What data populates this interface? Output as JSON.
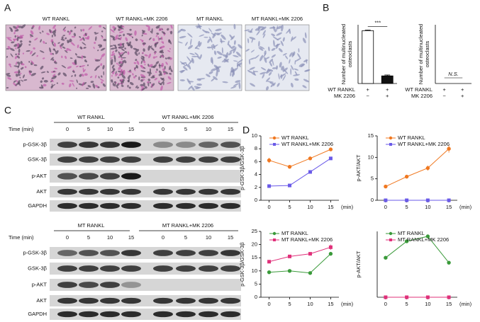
{
  "figure": {
    "panel_labels": [
      "A",
      "B",
      "C",
      "D"
    ],
    "micrographs": [
      "WT RANKL",
      "WT RANKL+MK 2206",
      "MT RANKL",
      "MT RANKL+MK 2206"
    ],
    "blots": [
      {
        "headers": [
          "WT RANKL",
          "WT RANKL+MK 2206"
        ],
        "time_label": "Time (min)",
        "times": [
          "0",
          "5",
          "10",
          "15",
          "0",
          "5",
          "10",
          "15"
        ],
        "rows": [
          "p-GSK-3β",
          "GSK-3β",
          "p-AKT",
          "AKT",
          "GAPDH"
        ]
      },
      {
        "headers": [
          "MT RANKL",
          "MT RANKL+MK 2206"
        ],
        "time_label": "Time (min)",
        "times": [
          "0",
          "5",
          "10",
          "15",
          "0",
          "5",
          "10",
          "15"
        ],
        "rows": [
          "p-GSK-3β",
          "GSK-3β",
          "p-AKT",
          "AKT",
          "GAPDH"
        ]
      }
    ]
  },
  "chart_data": [
    {
      "type": "bar",
      "ylabel": [
        "Number of multinucleated",
        "osteoclasts"
      ],
      "values": [
        90,
        13
      ],
      "errors": [
        1,
        1.5
      ],
      "colors": [
        "#ffffff",
        "#111111"
      ],
      "ylim": [
        0,
        100
      ],
      "annotation": "***",
      "condition_rows": [
        {
          "label": "WT RANKL",
          "marks": [
            "+",
            "+"
          ]
        },
        {
          "label": "MK 2206",
          "marks": [
            "−",
            "+"
          ]
        }
      ]
    },
    {
      "type": "bar",
      "ylabel": [
        "Number of multinucleated",
        "osteoclasts"
      ],
      "values": [
        0,
        0
      ],
      "errors": [
        0,
        0
      ],
      "colors": [
        "#ffffff",
        "#111111"
      ],
      "ylim": [
        0,
        100
      ],
      "annotation": "N.S.",
      "condition_rows": [
        {
          "label": "WT RANKL",
          "marks": [
            "+",
            "+"
          ]
        },
        {
          "label": "MK 2206",
          "marks": [
            "−",
            "+"
          ]
        }
      ]
    },
    {
      "type": "line",
      "ylabel": "p-GSK-3β/GSK-3β",
      "xlabel": "(min)",
      "x": [
        0,
        5,
        10,
        15
      ],
      "xlim": [
        -2,
        17
      ],
      "xticks": [
        0,
        5,
        10,
        15
      ],
      "ylim": [
        0,
        10
      ],
      "yticks": [
        0,
        2,
        4,
        6,
        8,
        10
      ],
      "series": [
        {
          "name": "WT RANKL",
          "color": "#f07820",
          "values": [
            6.2,
            5.2,
            6.5,
            7.9
          ],
          "errors": [
            0.4,
            0.2,
            0.2,
            0.2
          ]
        },
        {
          "name": "WT RANKL+MK 2206",
          "color": "#6a5ae8",
          "values": [
            2.2,
            2.3,
            4.4,
            6.5
          ],
          "errors": [
            0.1,
            0.1,
            0.2,
            0.1
          ]
        }
      ]
    },
    {
      "type": "line",
      "ylabel": "p-AKT/AKT",
      "xlabel": "(min)",
      "x": [
        0,
        5,
        10,
        15
      ],
      "xlim": [
        -2,
        17
      ],
      "xticks": [
        0,
        5,
        10,
        15
      ],
      "ylim": [
        0,
        15
      ],
      "yticks": [
        0,
        5,
        10,
        15
      ],
      "series": [
        {
          "name": "WT RANKL",
          "color": "#f07820",
          "values": [
            3.2,
            5.5,
            7.5,
            12
          ],
          "errors": [
            0.2,
            0.2,
            0.6,
            0.9
          ]
        },
        {
          "name": "WT RANKL+MK 2206",
          "color": "#6a5ae8",
          "values": [
            0,
            0,
            0,
            0
          ],
          "errors": [
            0,
            0,
            0,
            0
          ]
        }
      ]
    },
    {
      "type": "line",
      "ylabel": "p-GSK-3β/GSK-3β",
      "xlabel": "(min)",
      "x": [
        0,
        5,
        10,
        15
      ],
      "xlim": [
        -2,
        17
      ],
      "xticks": [
        0,
        5,
        10,
        15
      ],
      "ylim": [
        0,
        25
      ],
      "yticks": [
        0,
        5,
        10,
        15,
        20,
        25
      ],
      "series": [
        {
          "name": "MT RANKL",
          "color": "#3a9a3a",
          "values": [
            9.5,
            10,
            9.2,
            16.5
          ],
          "errors": [
            0.3,
            0.4,
            0.3,
            0.6
          ]
        },
        {
          "name": "MT RANKL+MK 2206",
          "color": "#e0307a",
          "values": [
            13.5,
            15.5,
            16.5,
            19
          ],
          "errors": [
            0.4,
            0.6,
            0.4,
            1
          ]
        }
      ]
    },
    {
      "type": "line",
      "ylabel": "p-AKT/AKT",
      "xlabel": "(min)",
      "x": [
        0,
        5,
        10,
        15
      ],
      "xlim": [
        -2,
        17
      ],
      "xticks": [
        0,
        5,
        10,
        15
      ],
      "ylim": [
        0,
        8
      ],
      "series": [
        {
          "name": "MT RANKL",
          "color": "#3a9a3a",
          "values": [
            4.8,
            6.8,
            7.4,
            4.2
          ],
          "errors": [
            0,
            0,
            0,
            0
          ]
        },
        {
          "name": "MT RANKL+MK 2206",
          "color": "#e0307a",
          "values": [
            0,
            0,
            0,
            0
          ],
          "errors": [
            0,
            0,
            0,
            0
          ]
        }
      ]
    }
  ]
}
